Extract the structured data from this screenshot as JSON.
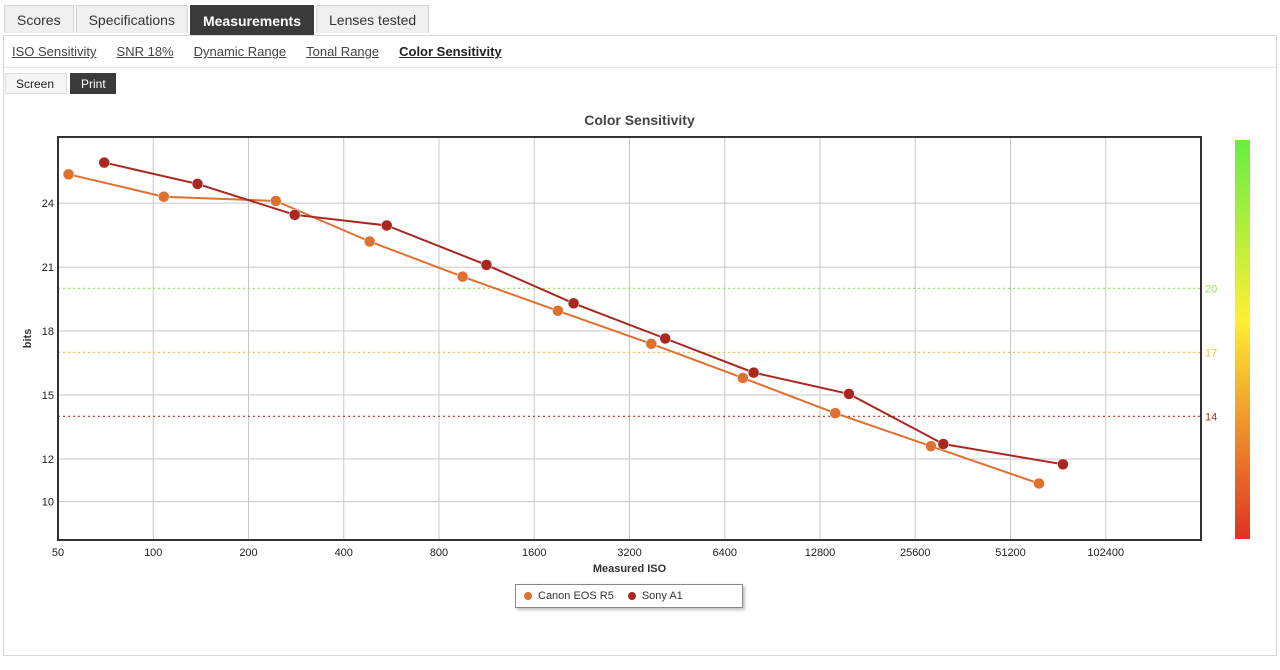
{
  "tabs": [
    {
      "label": "Scores",
      "active": false
    },
    {
      "label": "Specifications",
      "active": false
    },
    {
      "label": "Measurements",
      "active": true
    },
    {
      "label": "Lenses tested",
      "active": false
    }
  ],
  "subtabs": [
    {
      "label": "ISO Sensitivity",
      "active": false
    },
    {
      "label": "SNR 18%",
      "active": false
    },
    {
      "label": "Dynamic Range",
      "active": false
    },
    {
      "label": "Tonal Range",
      "active": false
    },
    {
      "label": "Color Sensitivity",
      "active": true
    }
  ],
  "view_toggle": {
    "screen_label": "Screen",
    "print_label": "Print",
    "selected": "Print"
  },
  "chart_data": {
    "type": "line",
    "title": "Color Sensitivity",
    "xlabel": "Measured ISO",
    "ylabel": "bits",
    "x_scale": "log2",
    "x_ticks": [
      50,
      100,
      200,
      400,
      800,
      1600,
      3200,
      6400,
      12800,
      25600,
      51200,
      102400
    ],
    "y_ticks": [
      10,
      12,
      15,
      18,
      21,
      24
    ],
    "ylim": [
      8.2,
      27.1
    ],
    "xlim": [
      50,
      204800
    ],
    "grid": true,
    "legend_placement": "bottom-center",
    "reference_lines": [
      {
        "value": 20,
        "label": "20",
        "color": "#9be05a"
      },
      {
        "value": 17,
        "label": "17",
        "color": "#f0c040"
      },
      {
        "value": 14,
        "label": "14",
        "color": "#b83020"
      }
    ],
    "series": [
      {
        "name": "Canon EOS R5",
        "color": "#e07030",
        "points": [
          {
            "x": 54,
            "y": 25.35
          },
          {
            "x": 108,
            "y": 24.3
          },
          {
            "x": 244,
            "y": 24.1
          },
          {
            "x": 483,
            "y": 22.2
          },
          {
            "x": 950,
            "y": 20.55
          },
          {
            "x": 1900,
            "y": 18.95
          },
          {
            "x": 3750,
            "y": 17.4
          },
          {
            "x": 7300,
            "y": 15.8
          },
          {
            "x": 14300,
            "y": 14.15
          },
          {
            "x": 28700,
            "y": 12.6
          },
          {
            "x": 63000,
            "y": 10.85
          }
        ]
      },
      {
        "name": "Sony A1",
        "color": "#a82820",
        "points": [
          {
            "x": 70,
            "y": 25.9
          },
          {
            "x": 138,
            "y": 24.9
          },
          {
            "x": 280,
            "y": 23.45
          },
          {
            "x": 547,
            "y": 22.95
          },
          {
            "x": 1130,
            "y": 21.1
          },
          {
            "x": 2130,
            "y": 19.3
          },
          {
            "x": 4150,
            "y": 17.65
          },
          {
            "x": 7900,
            "y": 16.05
          },
          {
            "x": 15800,
            "y": 15.05
          },
          {
            "x": 31400,
            "y": 12.7
          },
          {
            "x": 75000,
            "y": 11.75
          }
        ]
      }
    ],
    "color_scale": {
      "top": "#66ee44",
      "mid": "#ffee33",
      "bottom": "#dd3322"
    }
  }
}
